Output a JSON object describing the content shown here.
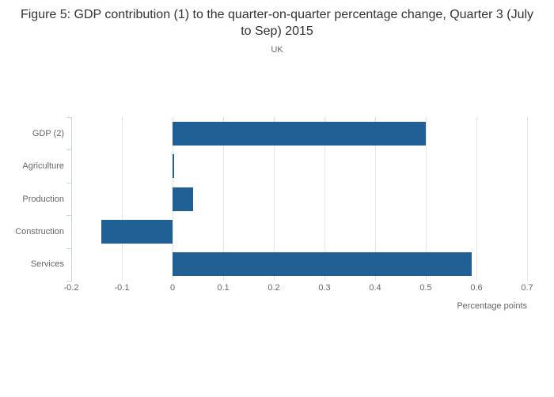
{
  "figure": {
    "title": "Figure 5: GDP contribution (1) to the quarter-on-quarter percentage change, Quarter 3 (July to Sep) 2015",
    "subtitle": "UK"
  },
  "chart_data": {
    "type": "bar",
    "orientation": "horizontal",
    "title": "Figure 5: GDP contribution (1) to the quarter-on-quarter percentage change, Quarter 3 (July to Sep) 2015",
    "subtitle": "UK",
    "categories": [
      "GDP (2)",
      "Agriculture",
      "Production",
      "Construction",
      "Services"
    ],
    "values": [
      0.5,
      0.0,
      0.04,
      -0.14,
      0.59
    ],
    "xlabel": "Percentage points",
    "ylabel": "",
    "xlim": [
      -0.2,
      0.7
    ],
    "xticks": [
      "-0.2",
      "-0.1",
      "0",
      "0.1",
      "0.2",
      "0.3",
      "0.4",
      "0.5",
      "0.6",
      "0.7"
    ],
    "grid": true,
    "legend": "none",
    "bar_color": "#206095"
  },
  "colors": {
    "bar": "#206095",
    "axis_line": "#ccd6eb",
    "gridline": "#e6e6e6",
    "label_text": "#666666",
    "title_text": "#333333",
    "background": "#ffffff"
  }
}
